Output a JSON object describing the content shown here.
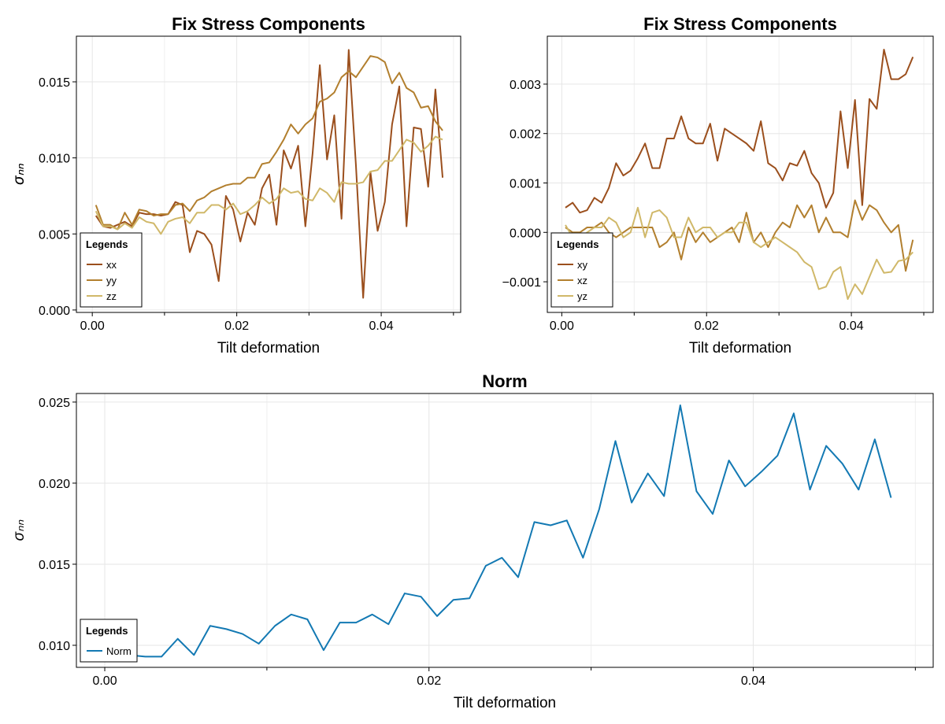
{
  "chart_data": [
    {
      "type": "line",
      "title": "Fix Stress Components",
      "xlabel": "Tilt deformation",
      "ylabel": "σₙₙ",
      "legend_title": "Legends",
      "legend": "bottom-left",
      "grid": true,
      "xlim": [
        -0.0022,
        0.051
      ],
      "ylim": [
        -0.00016,
        0.018
      ],
      "xticks": [
        {
          "value": 0,
          "label": "0.00"
        },
        {
          "value": 0.02,
          "label": "0.02"
        },
        {
          "value": 0.04,
          "label": "0.04"
        }
      ],
      "xminorticks": [
        0.01,
        0.03,
        0.05
      ],
      "yticks": [
        {
          "value": 0,
          "label": "0.000"
        },
        {
          "value": 0.005,
          "label": "0.005"
        },
        {
          "value": 0.01,
          "label": "0.010"
        },
        {
          "value": 0.015,
          "label": "0.015"
        }
      ],
      "x": [
        0.0005,
        0.0015,
        0.0025,
        0.0035,
        0.0045,
        0.0055,
        0.0065,
        0.0075,
        0.0085,
        0.0095,
        0.0105,
        0.0115,
        0.0125,
        0.0135,
        0.0145,
        0.0155,
        0.0165,
        0.0175,
        0.0185,
        0.0195,
        0.0205,
        0.0215,
        0.0225,
        0.0235,
        0.0245,
        0.0255,
        0.0265,
        0.0275,
        0.0285,
        0.0295,
        0.0305,
        0.0315,
        0.0325,
        0.0335,
        0.0345,
        0.0355,
        0.0365,
        0.0375,
        0.0385,
        0.0395,
        0.0405,
        0.0415,
        0.0425,
        0.0435,
        0.0445,
        0.0455,
        0.0465,
        0.0475,
        0.0485
      ],
      "series": [
        {
          "name": "xx",
          "color": "#9b4f1d",
          "values": [
            0.0062,
            0.0055,
            0.0054,
            0.0056,
            0.0058,
            0.0055,
            0.0064,
            0.0063,
            0.0063,
            0.0062,
            0.0063,
            0.0071,
            0.0069,
            0.0038,
            0.0052,
            0.005,
            0.0043,
            0.0019,
            0.0075,
            0.0066,
            0.0045,
            0.0064,
            0.0056,
            0.008,
            0.0089,
            0.0056,
            0.0105,
            0.0093,
            0.0108,
            0.0055,
            0.0103,
            0.0161,
            0.0099,
            0.0128,
            0.006,
            0.0171,
            0.0095,
            0.0008,
            0.0091,
            0.0052,
            0.0071,
            0.0122,
            0.0147,
            0.0055,
            0.012,
            0.0119,
            0.0081,
            0.0145,
            0.0087
          ]
        },
        {
          "name": "yy",
          "color": "#b27f2e",
          "values": [
            0.0069,
            0.0056,
            0.0056,
            0.0053,
            0.0064,
            0.0056,
            0.0066,
            0.0065,
            0.0062,
            0.0063,
            0.0063,
            0.0069,
            0.007,
            0.0065,
            0.0072,
            0.0074,
            0.0078,
            0.008,
            0.0082,
            0.0083,
            0.0083,
            0.0087,
            0.0087,
            0.0096,
            0.0097,
            0.0104,
            0.0112,
            0.0122,
            0.0116,
            0.0122,
            0.0126,
            0.0137,
            0.0139,
            0.0143,
            0.0153,
            0.0157,
            0.0153,
            0.016,
            0.0167,
            0.0166,
            0.0163,
            0.0149,
            0.0156,
            0.0146,
            0.0143,
            0.0133,
            0.0134,
            0.0124,
            0.0118
          ]
        },
        {
          "name": "zz",
          "color": "#d0b869",
          "values": [
            0.0065,
            0.0055,
            0.0055,
            0.0053,
            0.0057,
            0.0054,
            0.0061,
            0.0058,
            0.0057,
            0.005,
            0.0058,
            0.006,
            0.0061,
            0.0057,
            0.0064,
            0.0064,
            0.0069,
            0.0069,
            0.0066,
            0.007,
            0.0063,
            0.0065,
            0.0069,
            0.0074,
            0.007,
            0.0073,
            0.008,
            0.0077,
            0.0078,
            0.0073,
            0.0072,
            0.008,
            0.0077,
            0.0071,
            0.0084,
            0.0083,
            0.0083,
            0.0084,
            0.0091,
            0.0092,
            0.0098,
            0.0098,
            0.0105,
            0.0112,
            0.011,
            0.0104,
            0.0108,
            0.0114,
            0.0112
          ]
        }
      ]
    },
    {
      "type": "line",
      "title": "Fix Stress Components",
      "xlabel": "Tilt deformation",
      "ylabel": "σₙₙ",
      "legend_title": "Legends",
      "legend": "bottom-left",
      "grid": true,
      "xlim": [
        -0.002,
        0.0513
      ],
      "ylim": [
        -0.00162,
        0.00397
      ],
      "xticks": [
        {
          "value": 0,
          "label": "0.00"
        },
        {
          "value": 0.02,
          "label": "0.02"
        },
        {
          "value": 0.04,
          "label": "0.04"
        }
      ],
      "xminorticks": [
        0.01,
        0.03,
        0.05
      ],
      "yticks": [
        {
          "value": -0.001,
          "label": "−0.001"
        },
        {
          "value": 0,
          "label": "0.000"
        },
        {
          "value": 0.001,
          "label": "0.001"
        },
        {
          "value": 0.002,
          "label": "0.002"
        },
        {
          "value": 0.003,
          "label": "0.003"
        }
      ],
      "x": [
        0.0005,
        0.0015,
        0.0025,
        0.0035,
        0.0045,
        0.0055,
        0.0065,
        0.0075,
        0.0085,
        0.0095,
        0.0105,
        0.0115,
        0.0125,
        0.0135,
        0.0145,
        0.0155,
        0.0165,
        0.0175,
        0.0185,
        0.0195,
        0.0205,
        0.0215,
        0.0225,
        0.0235,
        0.0245,
        0.0255,
        0.0265,
        0.0275,
        0.0285,
        0.0295,
        0.0305,
        0.0315,
        0.0325,
        0.0335,
        0.0345,
        0.0355,
        0.0365,
        0.0375,
        0.0385,
        0.0395,
        0.0405,
        0.0415,
        0.0425,
        0.0435,
        0.0445,
        0.0455,
        0.0465,
        0.0475,
        0.0485
      ],
      "series": [
        {
          "name": "xy",
          "color": "#9b4f1d",
          "values": [
            0.0005,
            0.0006,
            0.0004,
            0.00045,
            0.0007,
            0.0006,
            0.0009,
            0.0014,
            0.00115,
            0.00125,
            0.0015,
            0.0018,
            0.0013,
            0.0013,
            0.0019,
            0.0019,
            0.00235,
            0.0019,
            0.0018,
            0.0018,
            0.0022,
            0.00145,
            0.0021,
            0.002,
            0.0019,
            0.0018,
            0.00165,
            0.00225,
            0.0014,
            0.0013,
            0.00105,
            0.0014,
            0.00135,
            0.00165,
            0.0012,
            0.001,
            0.0005,
            0.0008,
            0.00245,
            0.0013,
            0.00268,
            0.00055,
            0.0027,
            0.0025,
            0.0037,
            0.0031,
            0.0031,
            0.0032,
            0.00355
          ]
        },
        {
          "name": "xz",
          "color": "#b27f2e",
          "values": [
            0.0001,
            0,
            0,
            0.0001,
            0.0001,
            0.0002,
            0,
            -0.0001,
            0,
            0.0001,
            0.0001,
            0.0001,
            0.0001,
            -0.0003,
            -0.0002,
            0,
            -0.00055,
            0.0001,
            -0.0002,
            0,
            -0.0002,
            -0.0001,
            0,
            0.0001,
            -0.0002,
            0.0004,
            -0.0002,
            0,
            -0.0003,
            0,
            0.0002,
            0.0001,
            0.00055,
            0.0003,
            0.00055,
            0,
            0.0003,
            0,
            0,
            -0.0001,
            0.00065,
            0.00025,
            0.00055,
            0.00045,
            0.0002,
            0,
            0.00015,
            -0.00078,
            -0.00015
          ]
        },
        {
          "name": "yz",
          "color": "#d0b869",
          "values": [
            0.00015,
            -0.0001,
            -0.0001,
            0,
            0.0001,
            0.0001,
            0.0003,
            0.0002,
            -0.0001,
            0,
            0.0005,
            -0.0001,
            0.0004,
            0.00045,
            0.0003,
            -0.0001,
            -0.0001,
            0.0003,
            0,
            0.0001,
            0.0001,
            -0.0001,
            0,
            0,
            0.0002,
            0.0002,
            -0.0002,
            -0.0003,
            -0.0002,
            -0.0001,
            -0.0002,
            -0.0003,
            -0.0004,
            -0.0006,
            -0.0007,
            -0.00115,
            -0.0011,
            -0.0008,
            -0.0007,
            -0.00135,
            -0.00105,
            -0.00125,
            -0.0009,
            -0.00055,
            -0.00082,
            -0.0008,
            -0.00058,
            -0.00055,
            -0.0004
          ]
        }
      ]
    },
    {
      "type": "line",
      "title": "Norm",
      "xlabel": "Tilt deformation",
      "ylabel": "σₙₙ",
      "legend_title": "Legends",
      "legend": "bottom-left",
      "grid": true,
      "xlim": [
        -0.00175,
        0.0511
      ],
      "ylim": [
        0.00864,
        0.02553
      ],
      "xticks": [
        {
          "value": 0,
          "label": "0.00"
        },
        {
          "value": 0.02,
          "label": "0.02"
        },
        {
          "value": 0.04,
          "label": "0.04"
        }
      ],
      "xminorticks": [
        0.01,
        0.03,
        0.05
      ],
      "yticks": [
        {
          "value": 0.01,
          "label": "0.010"
        },
        {
          "value": 0.015,
          "label": "0.015"
        },
        {
          "value": 0.02,
          "label": "0.020"
        },
        {
          "value": 0.025,
          "label": "0.025"
        }
      ],
      "x": [
        0.0005,
        0.0015,
        0.0025,
        0.0035,
        0.0045,
        0.0055,
        0.0065,
        0.0075,
        0.0085,
        0.0095,
        0.0105,
        0.0115,
        0.0125,
        0.0135,
        0.0145,
        0.0155,
        0.0165,
        0.0175,
        0.0185,
        0.0195,
        0.0205,
        0.0215,
        0.0225,
        0.0235,
        0.0245,
        0.0255,
        0.0265,
        0.0275,
        0.0285,
        0.0295,
        0.0305,
        0.0315,
        0.0325,
        0.0335,
        0.0345,
        0.0355,
        0.0365,
        0.0375,
        0.0385,
        0.0395,
        0.0405,
        0.0415,
        0.0425,
        0.0435,
        0.0445,
        0.0455,
        0.0465,
        0.0475,
        0.0485
      ],
      "series": [
        {
          "name": "Norm",
          "color": "#1379b3",
          "values": [
            0.0095,
            0.0094,
            0.0093,
            0.0093,
            0.0104,
            0.0094,
            0.0112,
            0.011,
            0.0107,
            0.0101,
            0.0112,
            0.0119,
            0.0116,
            0.0097,
            0.0114,
            0.0114,
            0.0119,
            0.0113,
            0.0132,
            0.013,
            0.0118,
            0.0128,
            0.0129,
            0.0149,
            0.0154,
            0.0142,
            0.0176,
            0.0174,
            0.0177,
            0.0154,
            0.0184,
            0.0226,
            0.0188,
            0.0206,
            0.0192,
            0.0248,
            0.0195,
            0.0181,
            0.0214,
            0.0198,
            0.0207,
            0.0217,
            0.0243,
            0.0196,
            0.0223,
            0.0212,
            0.0196,
            0.0227,
            0.0191
          ]
        }
      ]
    }
  ]
}
